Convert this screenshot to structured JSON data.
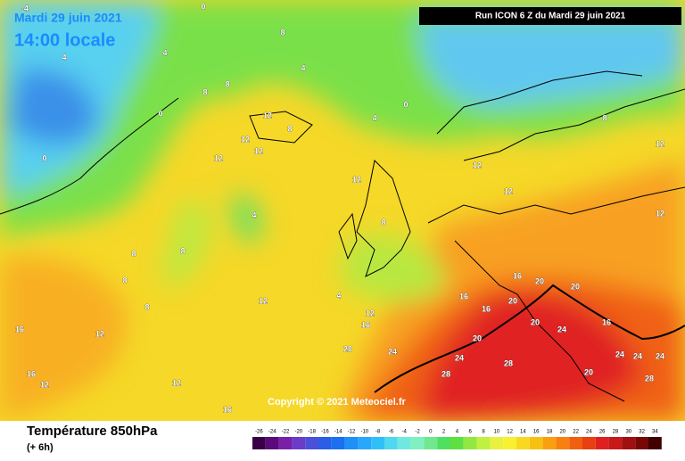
{
  "header": {
    "date": "Mardi 29 juin 2021",
    "time": "14:00 locale",
    "run": "Run ICON 6 Z du Mardi 29 juin 2021"
  },
  "copyright": "Copyright © 2021 Meteociel.fr",
  "footer": {
    "title": "Température 850hPa",
    "step": "(+ 6h)"
  },
  "contour_labels": [
    "-4",
    "0",
    "0",
    "0",
    "4",
    "4",
    "4",
    "4",
    "8",
    "8",
    "8",
    "8",
    "8",
    "8",
    "8",
    "8",
    "0",
    "4",
    "4",
    "12",
    "12",
    "12",
    "12",
    "12",
    "12",
    "12",
    "12",
    "12",
    "12",
    "12",
    "12",
    "12",
    "16",
    "16",
    "16",
    "16",
    "16",
    "16",
    "16",
    "20",
    "20",
    "20",
    "20",
    "20",
    "24",
    "24",
    "24",
    "24",
    "28",
    "28",
    "28",
    "20",
    "24",
    "24",
    "20",
    "16",
    "12",
    "8",
    "8"
  ],
  "scale": {
    "values": [
      -26,
      -24,
      -22,
      -20,
      -18,
      -16,
      -14,
      -12,
      -10,
      -8,
      -6,
      -4,
      -2,
      0,
      2,
      4,
      6,
      8,
      10,
      12,
      14,
      16,
      18,
      20,
      22,
      24,
      26,
      28,
      30,
      32,
      34
    ],
    "colors": [
      "#3a0045",
      "#5a0a7a",
      "#7a20a8",
      "#6a3cc8",
      "#4a50d8",
      "#2a5ee6",
      "#1a70f0",
      "#1e90f8",
      "#28a8fa",
      "#30c0f8",
      "#50d8f0",
      "#70e8e0",
      "#80f0c0",
      "#70e890",
      "#50e060",
      "#60e040",
      "#90e840",
      "#c0f040",
      "#e8f040",
      "#f8f030",
      "#f8d820",
      "#f8c010",
      "#f8a010",
      "#f88010",
      "#f06010",
      "#e84010",
      "#e02020",
      "#c81818",
      "#a01010",
      "#780808",
      "#400000"
    ]
  }
}
